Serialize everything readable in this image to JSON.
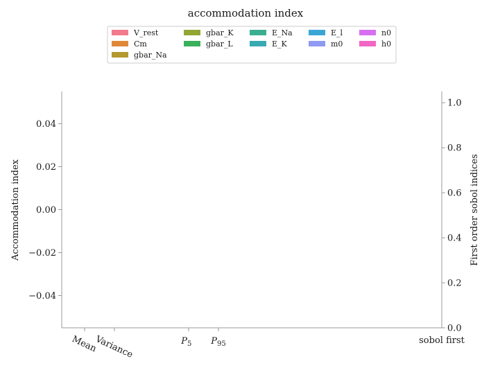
{
  "chart_data": {
    "type": "bar",
    "title": "accommodation index",
    "ylabel": "Accommodation index",
    "ylabel_right": "First order sobol indices",
    "ylim": [
      -0.055,
      0.055
    ],
    "ylim_right": [
      0.0,
      1.05
    ],
    "yticks": [
      "0.04",
      "0.02",
      "0.00",
      "−0.02",
      "−0.04"
    ],
    "ytick_values": [
      0.04,
      0.02,
      0.0,
      -0.02,
      -0.04
    ],
    "yticks_right": [
      "0.0",
      "0.2",
      "0.4",
      "0.6",
      "0.8",
      "1.0"
    ],
    "ytick_values_right": [
      0.0,
      0.2,
      0.4,
      0.6,
      0.8,
      1.0
    ],
    "categories": [
      "Mean",
      "Variance",
      "P5",
      "P95",
      "sobol first"
    ],
    "series": [],
    "legend": {
      "placement": "top-center",
      "columns": 5,
      "entries": [
        {
          "name": "V_rest",
          "color": "#f27a8c"
        },
        {
          "name": "Cm",
          "color": "#e0883a"
        },
        {
          "name": "gbar_Na",
          "color": "#b3992e"
        },
        {
          "name": "gbar_K",
          "color": "#95a534"
        },
        {
          "name": "gbar_L",
          "color": "#39b05a"
        },
        {
          "name": "E_Na",
          "color": "#3bae92"
        },
        {
          "name": "E_K",
          "color": "#38aab2"
        },
        {
          "name": "E_l",
          "color": "#3ba6d6"
        },
        {
          "name": "m0",
          "color": "#8f9af2"
        },
        {
          "name": "n0",
          "color": "#d770f0"
        },
        {
          "name": "h0",
          "color": "#f266c4"
        }
      ]
    },
    "grid": false
  }
}
